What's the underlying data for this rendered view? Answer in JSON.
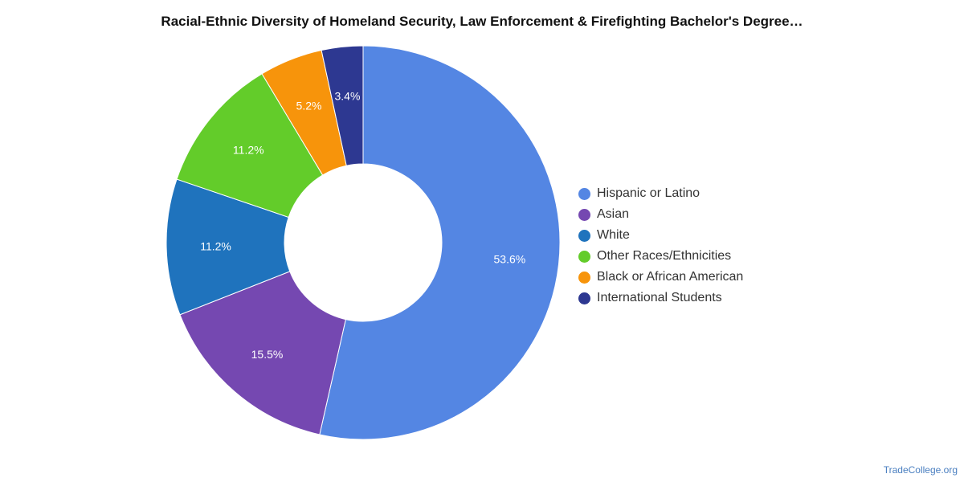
{
  "chart_data": {
    "type": "pie",
    "donut": true,
    "title": "Racial-Ethnic Diversity of Homeland Security, Law Enforcement & Firefighting Bachelor's Degree…",
    "legend_position": "right",
    "slices": [
      {
        "name": "Hispanic or Latino",
        "value": 53.6,
        "label": "53.6%",
        "color": "#5486e3"
      },
      {
        "name": "Asian",
        "value": 15.5,
        "label": "15.5%",
        "color": "#7548b1"
      },
      {
        "name": "White",
        "value": 11.2,
        "label": "11.2%",
        "color": "#1f73bd"
      },
      {
        "name": "Other Races/Ethnicities",
        "value": 11.2,
        "label": "11.2%",
        "color": "#63cc2a"
      },
      {
        "name": "Black or African American",
        "value": 5.2,
        "label": "5.2%",
        "color": "#f7940b"
      },
      {
        "name": "International Students",
        "value": 3.4,
        "label": "3.4%",
        "color": "#2d3891"
      }
    ]
  },
  "footer": {
    "credit": "TradeCollege.org"
  }
}
